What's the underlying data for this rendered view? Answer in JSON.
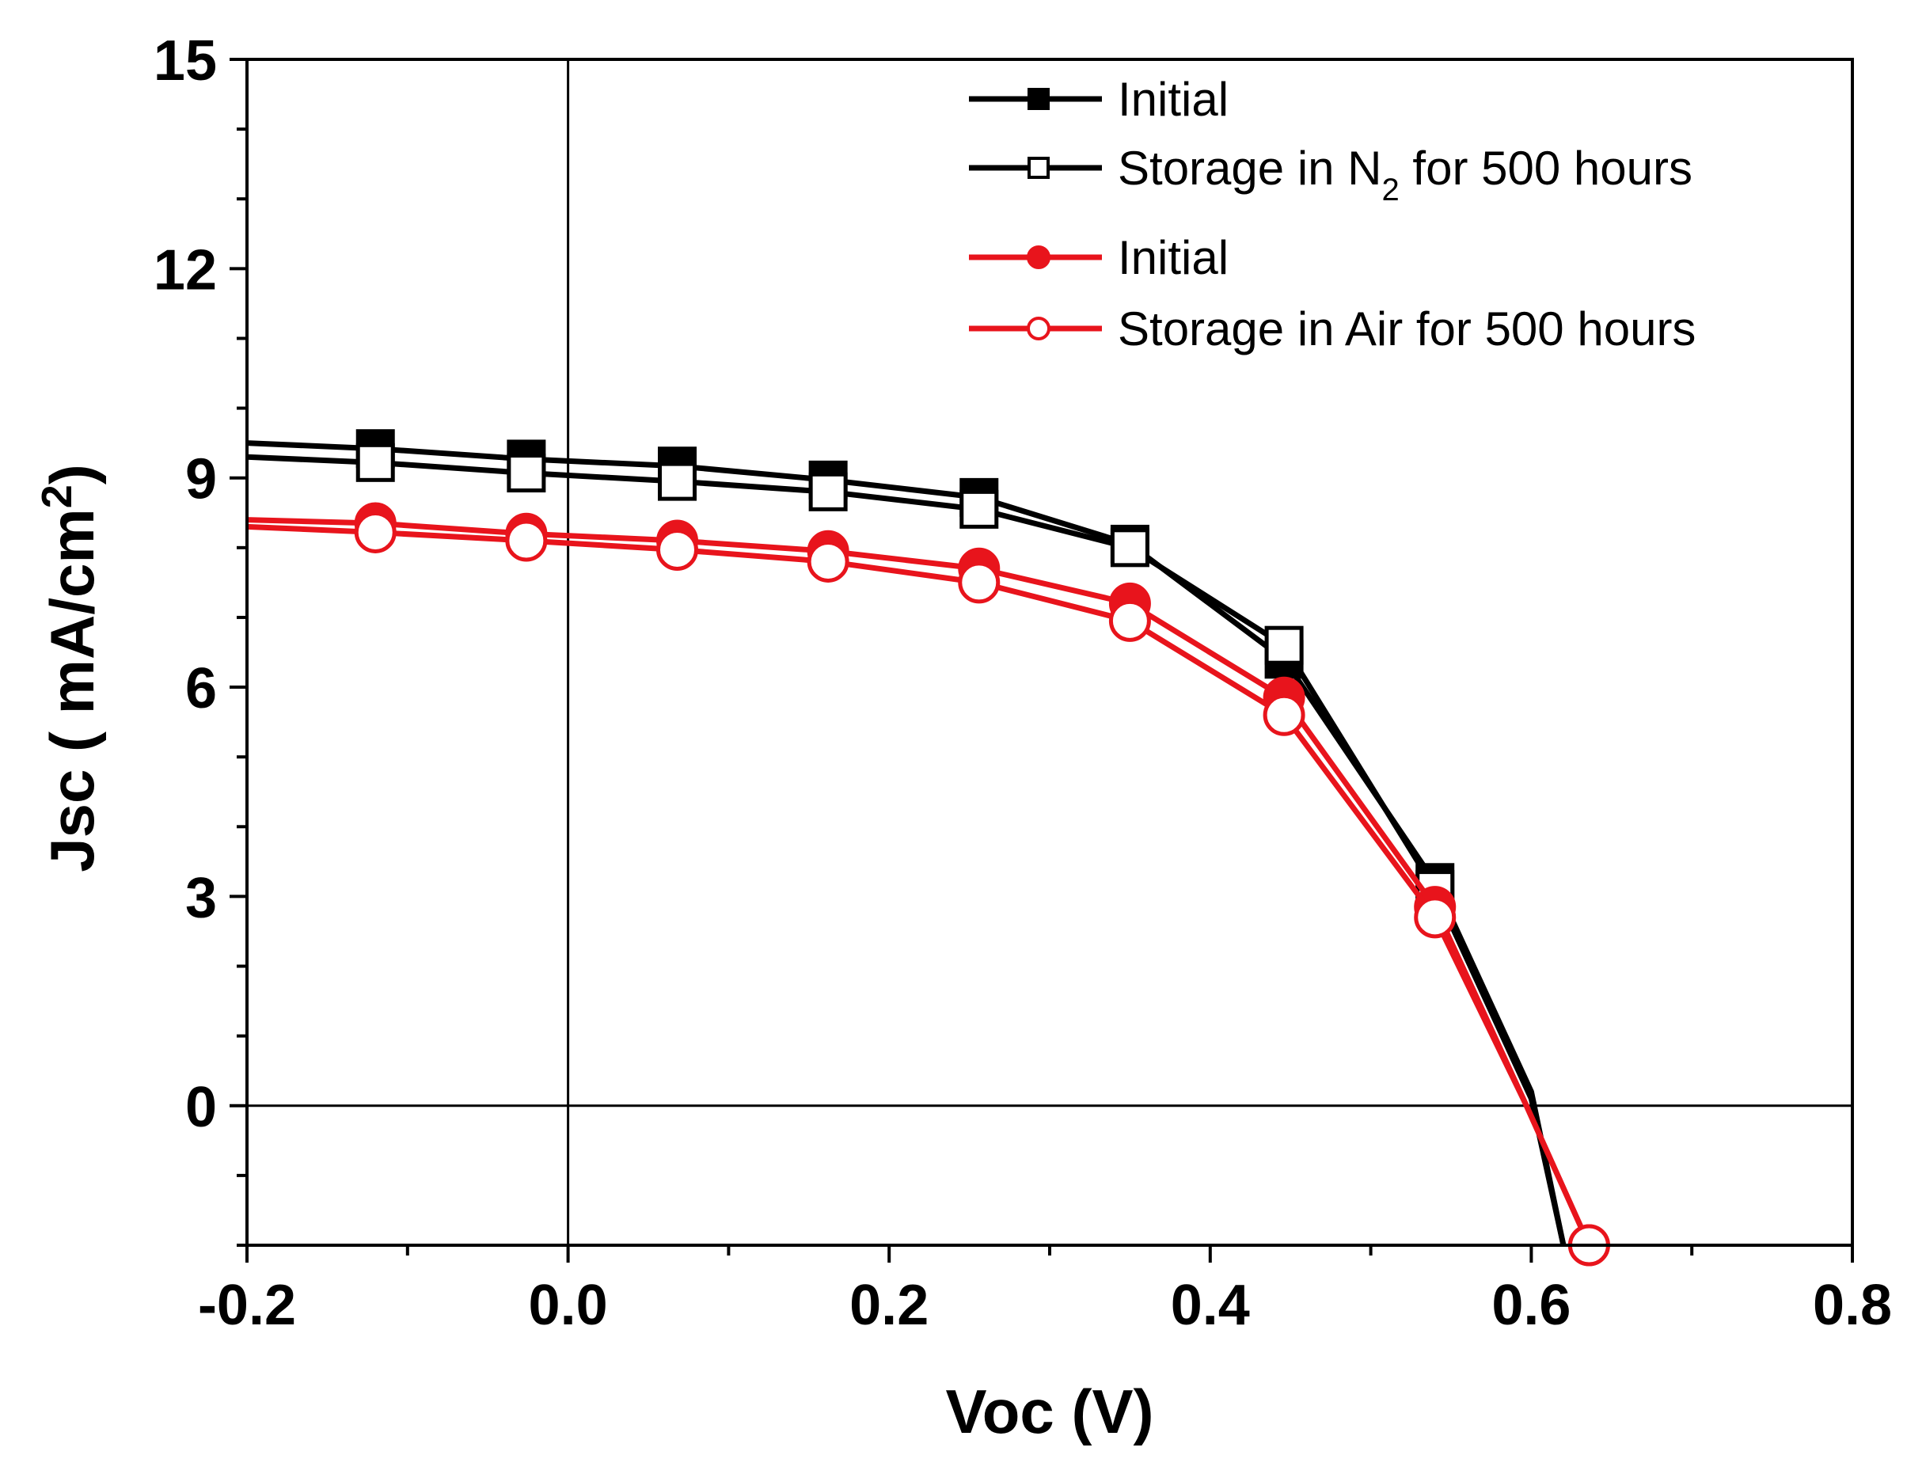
{
  "chart_data": {
    "type": "line",
    "title": "",
    "xlabel": "Voc (V)",
    "ylabel_main": "Jsc ( mA/cm",
    "ylabel_sup": "2",
    "ylabel_end": ")",
    "xlim": [
      -0.2,
      0.8
    ],
    "ylim": [
      -2,
      15
    ],
    "xticks": [
      -0.2,
      0.0,
      0.2,
      0.4,
      0.6,
      0.8
    ],
    "xtick_labels": [
      "-0.2",
      "0.0",
      "0.2",
      "0.4",
      "0.6",
      "0.8"
    ],
    "yticks": [
      0,
      3,
      6,
      9,
      12,
      15
    ],
    "ytick_labels": [
      "0",
      "3",
      "6",
      "9",
      "12",
      "15"
    ],
    "reference_lines": {
      "x": 0,
      "y": 0
    },
    "legend_position": "top-right",
    "series": [
      {
        "name": "Initial",
        "legend_label": "Initial",
        "color": "#000000",
        "marker": "square",
        "filled": true,
        "x": [
          -0.2,
          -0.12,
          -0.026,
          0.068,
          0.162,
          0.256,
          0.35,
          0.446,
          0.54,
          0.6,
          0.62
        ],
        "y": [
          9.5,
          9.42,
          9.27,
          9.17,
          8.97,
          8.72,
          8.05,
          6.4,
          3.2,
          0.2,
          -2.0
        ],
        "marker_idx": [
          1,
          2,
          3,
          4,
          5,
          6,
          7,
          8
        ]
      },
      {
        "name": "Storage in N2 for 500 hours",
        "legend_label": "Storage in N",
        "legend_sub": "2",
        "legend_label_end": " for 500 hours",
        "color": "#000000",
        "marker": "square",
        "filled": false,
        "x": [
          -0.2,
          -0.12,
          -0.026,
          0.068,
          0.162,
          0.256,
          0.35,
          0.446,
          0.54,
          0.6,
          0.62
        ],
        "y": [
          9.3,
          9.22,
          9.07,
          8.95,
          8.8,
          8.55,
          8.0,
          6.6,
          3.1,
          0.1,
          -2.0
        ],
        "marker_idx": [
          1,
          2,
          3,
          4,
          5,
          6,
          7,
          8
        ]
      },
      {
        "name": "Initial",
        "legend_label": "Initial",
        "color": "#e8141c",
        "marker": "circle",
        "filled": true,
        "x": [
          -0.2,
          -0.12,
          -0.026,
          0.068,
          0.162,
          0.256,
          0.35,
          0.446,
          0.54,
          0.595,
          0.636
        ],
        "y": [
          8.4,
          8.35,
          8.2,
          8.1,
          7.95,
          7.7,
          7.2,
          5.85,
          2.85,
          0.1,
          -2.0
        ],
        "marker_idx": [
          1,
          2,
          3,
          4,
          5,
          6,
          7,
          8,
          10
        ]
      },
      {
        "name": "Storage in Air for 500 hours",
        "legend_label": "Storage in Air for 500 hours",
        "color": "#e8141c",
        "marker": "circle",
        "filled": false,
        "x": [
          -0.2,
          -0.12,
          -0.026,
          0.068,
          0.162,
          0.256,
          0.35,
          0.446,
          0.54,
          0.597,
          0.636
        ],
        "y": [
          8.3,
          8.22,
          8.1,
          7.97,
          7.8,
          7.5,
          6.95,
          5.6,
          2.7,
          0.0,
          -2.0
        ],
        "marker_idx": [
          1,
          2,
          3,
          4,
          5,
          6,
          7,
          8,
          10
        ]
      }
    ]
  }
}
